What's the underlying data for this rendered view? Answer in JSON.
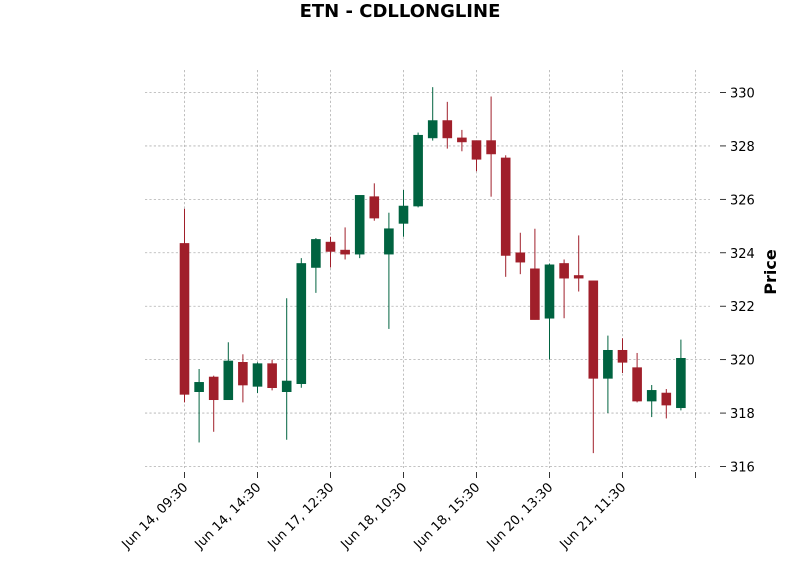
{
  "chart_data": {
    "type": "candlestick",
    "title": "ETN - CDLLONGLINE",
    "ylabel": "Price",
    "ylim": [
      315.8,
      330.8
    ],
    "y_ticks": [
      316,
      318,
      320,
      322,
      324,
      326,
      328,
      330
    ],
    "x_tick_labels": [
      {
        "index": 0,
        "label": "Jun 14, 09:30"
      },
      {
        "index": 5,
        "label": "Jun 14, 14:30"
      },
      {
        "index": 10,
        "label": "Jun 17, 12:30"
      },
      {
        "index": 15,
        "label": "Jun 18, 10:30"
      },
      {
        "index": 20,
        "label": "Jun 18, 15:30"
      },
      {
        "index": 25,
        "label": "Jun 20, 13:30"
      },
      {
        "index": 30,
        "label": "Jun 21, 11:30"
      },
      {
        "index": 35,
        "label": ""
      }
    ],
    "grid": true,
    "colors": {
      "up": "#006340",
      "down": "#a01f2a"
    },
    "candles": [
      {
        "o": 324.35,
        "h": 325.65,
        "l": 318.4,
        "c": 318.7
      },
      {
        "o": 318.8,
        "h": 319.65,
        "l": 316.9,
        "c": 319.15
      },
      {
        "o": 319.35,
        "h": 319.4,
        "l": 317.3,
        "c": 318.5
      },
      {
        "o": 318.5,
        "h": 320.65,
        "l": 318.5,
        "c": 319.95
      },
      {
        "o": 319.9,
        "h": 320.2,
        "l": 318.4,
        "c": 319.05
      },
      {
        "o": 319.0,
        "h": 319.9,
        "l": 318.75,
        "c": 319.85
      },
      {
        "o": 319.85,
        "h": 320.0,
        "l": 318.85,
        "c": 318.95
      },
      {
        "o": 318.8,
        "h": 322.3,
        "l": 317.0,
        "c": 319.2
      },
      {
        "o": 319.1,
        "h": 323.8,
        "l": 318.95,
        "c": 323.6
      },
      {
        "o": 323.45,
        "h": 324.55,
        "l": 322.5,
        "c": 324.5
      },
      {
        "o": 324.4,
        "h": 324.6,
        "l": 323.45,
        "c": 324.05
      },
      {
        "o": 324.1,
        "h": 324.95,
        "l": 323.75,
        "c": 323.95
      },
      {
        "o": 323.95,
        "h": 326.15,
        "l": 323.8,
        "c": 326.15
      },
      {
        "o": 326.1,
        "h": 326.6,
        "l": 325.2,
        "c": 325.3
      },
      {
        "o": 323.95,
        "h": 325.5,
        "l": 321.15,
        "c": 324.9
      },
      {
        "o": 325.1,
        "h": 326.35,
        "l": 324.6,
        "c": 325.75
      },
      {
        "o": 325.75,
        "h": 328.5,
        "l": 325.7,
        "c": 328.4
      },
      {
        "o": 328.3,
        "h": 330.2,
        "l": 328.2,
        "c": 328.95
      },
      {
        "o": 328.95,
        "h": 329.65,
        "l": 327.9,
        "c": 328.3
      },
      {
        "o": 328.3,
        "h": 328.6,
        "l": 327.8,
        "c": 328.15
      },
      {
        "o": 328.2,
        "h": 328.2,
        "l": 327.05,
        "c": 327.5
      },
      {
        "o": 328.2,
        "h": 329.85,
        "l": 326.1,
        "c": 327.7
      },
      {
        "o": 327.55,
        "h": 327.65,
        "l": 323.1,
        "c": 323.9
      },
      {
        "o": 324.0,
        "h": 324.75,
        "l": 323.2,
        "c": 323.65
      },
      {
        "o": 323.4,
        "h": 324.9,
        "l": 321.5,
        "c": 321.5
      },
      {
        "o": 321.55,
        "h": 323.6,
        "l": 320.0,
        "c": 323.55
      },
      {
        "o": 323.6,
        "h": 323.75,
        "l": 321.55,
        "c": 323.05
      },
      {
        "o": 323.15,
        "h": 324.65,
        "l": 322.55,
        "c": 323.05
      },
      {
        "o": 322.95,
        "h": 322.95,
        "l": 316.5,
        "c": 319.3
      },
      {
        "o": 319.3,
        "h": 320.9,
        "l": 318.0,
        "c": 320.35
      },
      {
        "o": 320.35,
        "h": 320.8,
        "l": 319.5,
        "c": 319.9
      },
      {
        "o": 319.7,
        "h": 320.25,
        "l": 318.4,
        "c": 318.45
      },
      {
        "o": 318.45,
        "h": 319.05,
        "l": 317.85,
        "c": 318.85
      },
      {
        "o": 318.75,
        "h": 318.9,
        "l": 317.8,
        "c": 318.3
      },
      {
        "o": 318.2,
        "h": 320.75,
        "l": 318.1,
        "c": 320.05
      }
    ]
  }
}
